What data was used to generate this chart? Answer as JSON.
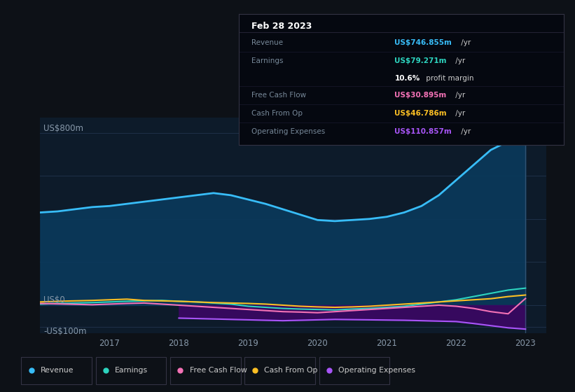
{
  "bg_color": "#0d1117",
  "plot_bg_color": "#0d1b2a",
  "ylabel_top": "US$800m",
  "ylabel_zero": "US$0",
  "ylabel_neg": "-US$100m",
  "x_ticks": [
    "2017",
    "2018",
    "2019",
    "2020",
    "2021",
    "2022",
    "2023"
  ],
  "legend_items": [
    {
      "label": "Revenue",
      "color": "#38bdf8"
    },
    {
      "label": "Earnings",
      "color": "#2dd4bf"
    },
    {
      "label": "Free Cash Flow",
      "color": "#f472b6"
    },
    {
      "label": "Cash From Op",
      "color": "#fbbf24"
    },
    {
      "label": "Operating Expenses",
      "color": "#a855f7"
    }
  ],
  "tooltip": {
    "date": "Feb 28 2023",
    "rows": [
      {
        "label": "Revenue",
        "value": "US$746.855m",
        "unit": " /yr",
        "value_color": "#38bdf8",
        "sep": true
      },
      {
        "label": "Earnings",
        "value": "US$79.271m",
        "unit": " /yr",
        "value_color": "#2dd4bf",
        "sep": true
      },
      {
        "label": "",
        "value": "10.6%",
        "unit": " profit margin",
        "value_color": "#ffffff",
        "sep": false
      },
      {
        "label": "Free Cash Flow",
        "value": "US$30.895m",
        "unit": " /yr",
        "value_color": "#f472b6",
        "sep": true
      },
      {
        "label": "Cash From Op",
        "value": "US$46.786m",
        "unit": " /yr",
        "value_color": "#fbbf24",
        "sep": true
      },
      {
        "label": "Operating Expenses",
        "value": "US$110.857m",
        "unit": " /yr",
        "value_color": "#a855f7",
        "sep": true
      }
    ]
  },
  "revenue": {
    "x": [
      2016.0,
      2016.25,
      2016.5,
      2016.75,
      2017.0,
      2017.25,
      2017.5,
      2017.75,
      2018.0,
      2018.25,
      2018.5,
      2018.75,
      2019.0,
      2019.25,
      2019.5,
      2019.75,
      2020.0,
      2020.25,
      2020.5,
      2020.75,
      2021.0,
      2021.25,
      2021.5,
      2021.75,
      2022.0,
      2022.25,
      2022.5,
      2022.75,
      2023.0
    ],
    "y": [
      430,
      435,
      445,
      455,
      460,
      470,
      480,
      490,
      500,
      510,
      520,
      510,
      490,
      470,
      445,
      420,
      395,
      390,
      395,
      400,
      410,
      430,
      460,
      510,
      580,
      650,
      720,
      760,
      747
    ],
    "color": "#38bdf8",
    "fill_color": "#0a3a5c",
    "lw": 2.0
  },
  "operating_expenses": {
    "x": [
      2018.0,
      2018.25,
      2018.5,
      2018.75,
      2019.0,
      2019.25,
      2019.5,
      2019.75,
      2020.0,
      2020.25,
      2020.5,
      2020.75,
      2021.0,
      2021.25,
      2021.5,
      2021.75,
      2022.0,
      2022.25,
      2022.5,
      2022.75,
      2023.0
    ],
    "y": [
      -60,
      -62,
      -64,
      -66,
      -68,
      -70,
      -72,
      -70,
      -68,
      -66,
      -67,
      -68,
      -69,
      -70,
      -72,
      -74,
      -76,
      -85,
      -95,
      -105,
      -111
    ],
    "color": "#a855f7",
    "fill_color": "#3b0764",
    "lw": 1.5
  },
  "earnings": {
    "x": [
      2016.0,
      2016.25,
      2016.5,
      2016.75,
      2017.0,
      2017.25,
      2017.5,
      2017.75,
      2018.0,
      2018.25,
      2018.5,
      2018.75,
      2019.0,
      2019.25,
      2019.5,
      2019.75,
      2020.0,
      2020.25,
      2020.5,
      2020.75,
      2021.0,
      2021.25,
      2021.5,
      2021.75,
      2022.0,
      2022.25,
      2022.5,
      2022.75,
      2023.0
    ],
    "y": [
      5,
      8,
      10,
      12,
      15,
      18,
      20,
      22,
      18,
      15,
      10,
      5,
      -5,
      -10,
      -15,
      -18,
      -20,
      -22,
      -18,
      -15,
      -10,
      -5,
      5,
      15,
      25,
      40,
      55,
      70,
      79
    ],
    "color": "#2dd4bf",
    "lw": 1.5
  },
  "free_cash_flow": {
    "x": [
      2016.0,
      2016.25,
      2016.5,
      2016.75,
      2017.0,
      2017.25,
      2017.5,
      2017.75,
      2018.0,
      2018.25,
      2018.5,
      2018.75,
      2019.0,
      2019.25,
      2019.5,
      2019.75,
      2020.0,
      2020.25,
      2020.5,
      2020.75,
      2021.0,
      2021.25,
      2021.5,
      2021.75,
      2022.0,
      2022.25,
      2022.5,
      2022.75,
      2023.0
    ],
    "y": [
      8,
      6,
      4,
      2,
      5,
      8,
      10,
      5,
      0,
      -5,
      -10,
      -15,
      -20,
      -25,
      -30,
      -32,
      -35,
      -30,
      -25,
      -20,
      -15,
      -10,
      -5,
      0,
      -5,
      -15,
      -30,
      -40,
      31
    ],
    "color": "#f472b6",
    "lw": 1.5
  },
  "cash_from_op": {
    "x": [
      2016.0,
      2016.25,
      2016.5,
      2016.75,
      2017.0,
      2017.25,
      2017.5,
      2017.75,
      2018.0,
      2018.25,
      2018.5,
      2018.75,
      2019.0,
      2019.25,
      2019.5,
      2019.75,
      2020.0,
      2020.25,
      2020.5,
      2020.75,
      2021.0,
      2021.25,
      2021.5,
      2021.75,
      2022.0,
      2022.25,
      2022.5,
      2022.75,
      2023.0
    ],
    "y": [
      15,
      18,
      20,
      22,
      25,
      28,
      22,
      20,
      18,
      15,
      12,
      10,
      8,
      5,
      0,
      -5,
      -8,
      -10,
      -8,
      -5,
      0,
      5,
      10,
      15,
      20,
      25,
      30,
      40,
      47
    ],
    "color": "#fbbf24",
    "lw": 1.5
  },
  "ylim": [
    -130,
    870
  ],
  "xlim": [
    2016.0,
    2023.3
  ]
}
